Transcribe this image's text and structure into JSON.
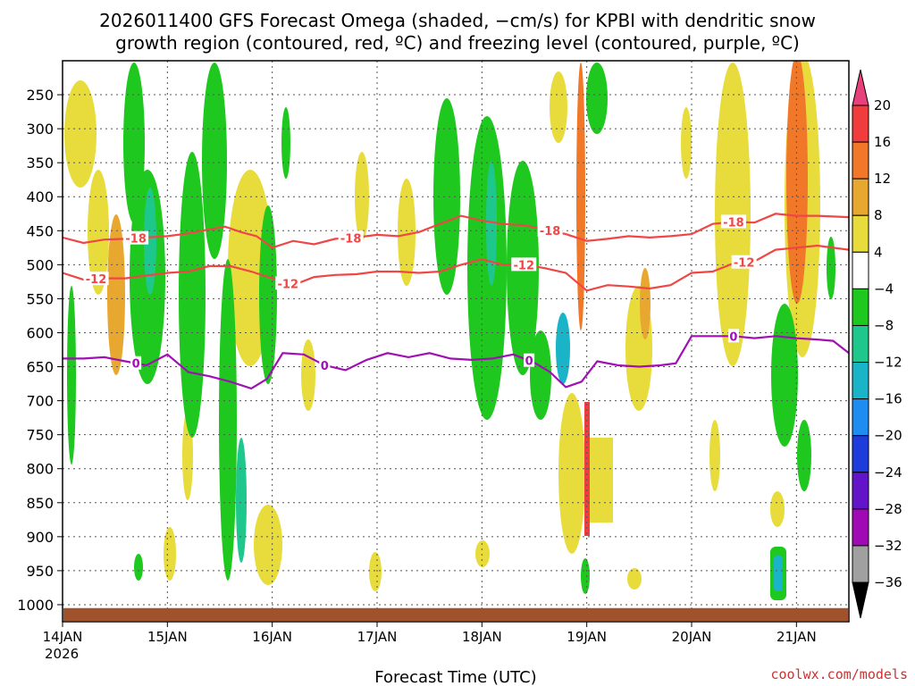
{
  "chart_data": {
    "type": "heatmap",
    "title_lines": [
      "2026011400 GFS Forecast Omega (shaded, −cm/s) for KPBI with dendritic snow",
      "growth region (contoured, red, ºC) and freezing level (contoured, purple, ºC)"
    ],
    "xlabel": "Forecast Time (UTC)",
    "credit": "coolwx.com/models",
    "x_ticks": [
      {
        "day": 0,
        "label": "14JAN",
        "sub": "2026"
      },
      {
        "day": 1,
        "label": "15JAN",
        "sub": ""
      },
      {
        "day": 2,
        "label": "16JAN",
        "sub": ""
      },
      {
        "day": 3,
        "label": "17JAN",
        "sub": ""
      },
      {
        "day": 4,
        "label": "18JAN",
        "sub": ""
      },
      {
        "day": 5,
        "label": "19JAN",
        "sub": ""
      },
      {
        "day": 6,
        "label": "20JAN",
        "sub": ""
      },
      {
        "day": 7,
        "label": "21JAN",
        "sub": ""
      }
    ],
    "xlim": [
      0,
      7.5
    ],
    "y_ticks": [
      250,
      300,
      350,
      400,
      450,
      500,
      550,
      600,
      650,
      700,
      750,
      800,
      850,
      900,
      950,
      1000
    ],
    "ylim": [
      200,
      1025
    ],
    "colorbar": {
      "labels": [
        "20",
        "16",
        "12",
        "8",
        "4",
        "−4",
        "−8",
        "−12",
        "−16",
        "−20",
        "−24",
        "−28",
        "−32",
        "−36"
      ],
      "colors": [
        "#e8407a",
        "#f03c3c",
        "#f07828",
        "#e8a830",
        "#e8dc3c",
        "#ffffff",
        "#1ec81e",
        "#1ec88c",
        "#19b4c8",
        "#1e8cf0",
        "#1e3cdc",
        "#6414c8",
        "#a00ab4",
        "#a0a0a0",
        "#000000"
      ]
    },
    "contours": [
      {
        "name": "-18",
        "color": "#f04646",
        "labels": [
          {
            "day": 0.7,
            "text": "-18"
          },
          {
            "day": 2.75,
            "text": "-18"
          },
          {
            "day": 4.65,
            "text": "-18"
          },
          {
            "day": 6.4,
            "text": "-18"
          }
        ],
        "x": [
          0,
          0.2,
          0.4,
          0.6,
          0.8,
          1.0,
          1.2,
          1.4,
          1.55,
          1.7,
          1.85,
          2.0,
          2.2,
          2.4,
          2.6,
          2.8,
          3.0,
          3.2,
          3.4,
          3.6,
          3.8,
          4.0,
          4.2,
          4.4,
          4.6,
          4.8,
          5.0,
          5.2,
          5.4,
          5.6,
          5.8,
          6.0,
          6.2,
          6.4,
          6.6,
          6.8,
          7.0,
          7.2,
          7.5
        ],
        "y": [
          460,
          468,
          463,
          462,
          460,
          458,
          454,
          448,
          444,
          452,
          458,
          475,
          465,
          470,
          462,
          460,
          456,
          458,
          452,
          440,
          428,
          435,
          440,
          442,
          448,
          455,
          465,
          462,
          458,
          460,
          458,
          455,
          440,
          437,
          438,
          425,
          428,
          428,
          430
        ]
      },
      {
        "name": "-12",
        "color": "#f04646",
        "labels": [
          {
            "day": 0.32,
            "text": "-12"
          },
          {
            "day": 2.15,
            "text": "-12"
          },
          {
            "day": 4.4,
            "text": "-12"
          },
          {
            "day": 6.5,
            "text": "-12"
          }
        ],
        "x": [
          0,
          0.2,
          0.4,
          0.6,
          0.8,
          1.0,
          1.2,
          1.4,
          1.6,
          1.8,
          2.0,
          2.2,
          2.4,
          2.6,
          2.8,
          3.0,
          3.2,
          3.4,
          3.6,
          3.8,
          4.0,
          4.2,
          4.4,
          4.6,
          4.8,
          5.0,
          5.2,
          5.4,
          5.6,
          5.8,
          6.0,
          6.2,
          6.4,
          6.6,
          6.8,
          7.0,
          7.2,
          7.5
        ],
        "y": [
          512,
          522,
          520,
          520,
          516,
          512,
          510,
          502,
          502,
          510,
          520,
          530,
          518,
          515,
          514,
          510,
          510,
          512,
          510,
          500,
          492,
          500,
          500,
          505,
          512,
          538,
          530,
          532,
          535,
          530,
          512,
          510,
          498,
          495,
          478,
          475,
          472,
          478
        ]
      },
      {
        "name": "0",
        "color": "#a010b4",
        "labels": [
          {
            "day": 0.7,
            "text": "0"
          },
          {
            "day": 2.5,
            "text": "0"
          },
          {
            "day": 4.45,
            "text": "0"
          },
          {
            "day": 6.4,
            "text": "0"
          }
        ],
        "x": [
          0,
          0.2,
          0.4,
          0.6,
          0.8,
          1.0,
          1.2,
          1.4,
          1.6,
          1.8,
          1.95,
          2.1,
          2.3,
          2.5,
          2.7,
          2.9,
          3.1,
          3.3,
          3.5,
          3.7,
          3.9,
          4.1,
          4.3,
          4.5,
          4.65,
          4.8,
          4.95,
          5.1,
          5.3,
          5.5,
          5.7,
          5.85,
          6.0,
          6.2,
          6.4,
          6.6,
          6.8,
          7.0,
          7.2,
          7.35,
          7.5
        ],
        "y": [
          638,
          638,
          636,
          642,
          648,
          632,
          658,
          664,
          672,
          682,
          668,
          630,
          632,
          648,
          655,
          640,
          630,
          636,
          630,
          638,
          640,
          638,
          632,
          644,
          658,
          680,
          672,
          642,
          648,
          650,
          648,
          645,
          605,
          605,
          605,
          608,
          605,
          608,
          610,
          612,
          630
        ]
      }
    ]
  }
}
